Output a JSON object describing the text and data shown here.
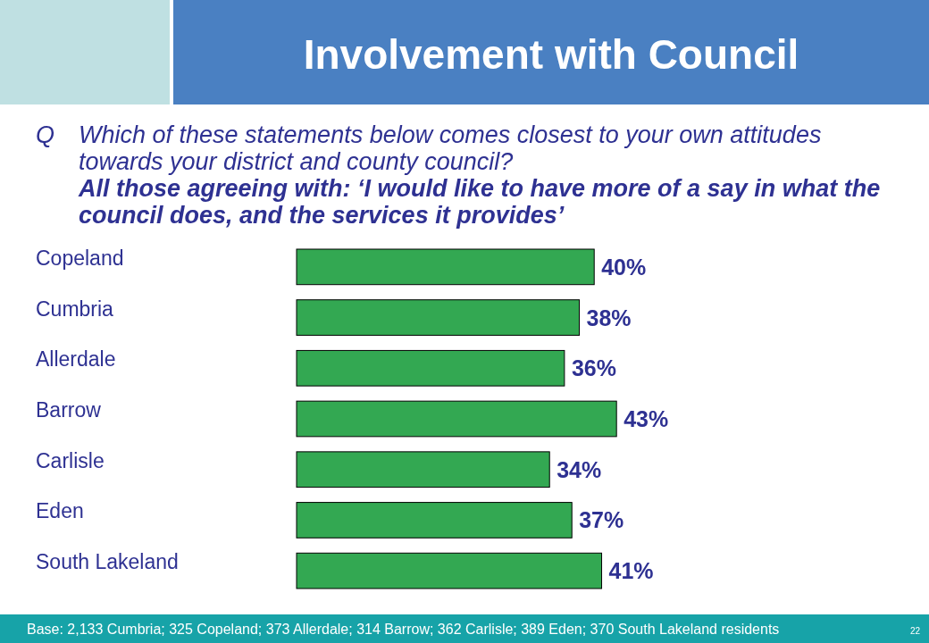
{
  "chart_data": {
    "type": "bar",
    "orientation": "horizontal",
    "title": "Involvement with Council",
    "subtitle": "Which of these statements below comes closest to your own attitudes towards your district and county council?",
    "annotations": [
      "Q",
      "All those agreeing with: ‘I would like to have more of a say in what the council does, and the services it provides’",
      "Base: 2,133 Cumbria; 325 Copeland; 373 Allerdale; 314 Barrow; 362 Carlisle; 389 Eden; 370 South Lakeland residents",
      "22"
    ],
    "categories": [
      "Copeland",
      "Cumbria",
      "Allerdale",
      "Barrow",
      "Carlisle",
      "Eden",
      "South Lakeland"
    ],
    "values": [
      40,
      38,
      36,
      43,
      34,
      37,
      41
    ],
    "value_labels": [
      "40%",
      "38%",
      "36%",
      "43%",
      "34%",
      "37%",
      "41%"
    ],
    "color": "#33a852"
  }
}
